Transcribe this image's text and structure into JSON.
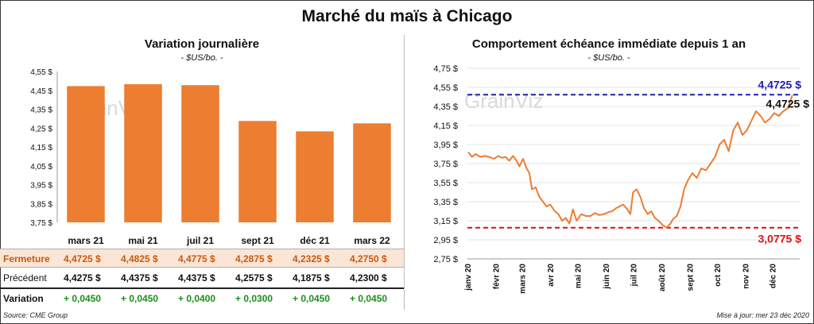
{
  "title": "Marché du maïs à Chicago",
  "left_panel": {
    "title": "Variation journalière",
    "unit": "- $US/bo. -",
    "watermark": "GrainViz"
  },
  "right_panel": {
    "title": "Comportement échéance immédiate depuis 1 an",
    "unit": "- $US/bo. -",
    "watermark": "GrainViz"
  },
  "table": {
    "rows": [
      {
        "label": "Fermeture",
        "values": [
          "4,4725  $",
          "4,4825  $",
          "4,4775  $",
          "4,2875  $",
          "4,2325  $",
          "4,2750  $"
        ]
      },
      {
        "label": "Précédent",
        "values": [
          "4,4275  $",
          "4,4375  $",
          "4,4375  $",
          "4,2575  $",
          "4,1875  $",
          "4,2300  $"
        ]
      },
      {
        "label": "Variation",
        "values": [
          "+ 0,0450",
          "+ 0,0450",
          "+ 0,0400",
          "+ 0,0300",
          "+ 0,0450",
          "+ 0,0450"
        ]
      }
    ]
  },
  "footer": {
    "source": "Source: CME Group",
    "updated": "Mise à jour: mer 23 déc 2020"
  },
  "colors": {
    "bar": "#ed7d31",
    "line": "#ed7d31",
    "high_line": "#1f1fb4",
    "low_line": "#e01010",
    "variation_positive": "#1a8f1a"
  },
  "chart_data": [
    {
      "type": "bar",
      "title": "Variation journalière",
      "categories": [
        "mars 21",
        "mai 21",
        "juil 21",
        "sept 21",
        "déc 21",
        "mars 22"
      ],
      "values": [
        4.4725,
        4.4825,
        4.4775,
        4.2875,
        4.2325,
        4.275
      ],
      "ylim": [
        3.75,
        4.55
      ],
      "yticks": [
        "4,55 $",
        "4,45 $",
        "4,35 $",
        "4,25 $",
        "4,15 $",
        "4,05 $",
        "3,95 $",
        "3,85 $",
        "3,75 $"
      ],
      "ytick_values": [
        4.55,
        4.45,
        4.35,
        4.25,
        4.15,
        4.05,
        3.95,
        3.85,
        3.75
      ],
      "grid": false
    },
    {
      "type": "line",
      "title": "Comportement échéance immédiate depuis 1 an",
      "ylim": [
        2.75,
        4.75
      ],
      "yticks": [
        "4,75 $",
        "4,55 $",
        "4,35 $",
        "4,15 $",
        "3,95 $",
        "3,75 $",
        "3,55 $",
        "3,35 $",
        "3,15 $",
        "2,95 $",
        "2,75 $"
      ],
      "ytick_values": [
        4.75,
        4.55,
        4.35,
        4.15,
        3.95,
        3.75,
        3.55,
        3.35,
        3.15,
        2.95,
        2.75
      ],
      "xticks": [
        "janv 20",
        "févr 20",
        "mars 20",
        "avr 20",
        "mai 20",
        "juin 20",
        "juil 20",
        "août 20",
        "sept 20",
        "oct 20",
        "nov 20",
        "déc 20"
      ],
      "grid": true,
      "series": [
        {
          "x": [
            "2020-01-02",
            "2020-01-06",
            "2020-01-10",
            "2020-01-15",
            "2020-01-20",
            "2020-01-25",
            "2020-01-30",
            "2020-02-04",
            "2020-02-08",
            "2020-02-12",
            "2020-02-16",
            "2020-02-20",
            "2020-02-24",
            "2020-02-27",
            "2020-03-02",
            "2020-03-06",
            "2020-03-09",
            "2020-03-12",
            "2020-03-16",
            "2020-03-20",
            "2020-03-24",
            "2020-03-28",
            "2020-04-01",
            "2020-04-06",
            "2020-04-10",
            "2020-04-14",
            "2020-04-18",
            "2020-04-22",
            "2020-04-26",
            "2020-04-30",
            "2020-05-05",
            "2020-05-10",
            "2020-05-15",
            "2020-05-20",
            "2020-05-25",
            "2020-05-30",
            "2020-06-04",
            "2020-06-08",
            "2020-06-12",
            "2020-06-16",
            "2020-06-20",
            "2020-06-24",
            "2020-06-28",
            "2020-07-01",
            "2020-07-05",
            "2020-07-09",
            "2020-07-13",
            "2020-07-17",
            "2020-07-21",
            "2020-07-25",
            "2020-07-29",
            "2020-08-03",
            "2020-08-07",
            "2020-08-11",
            "2020-08-14",
            "2020-08-18",
            "2020-08-22",
            "2020-08-26",
            "2020-08-30",
            "2020-09-04",
            "2020-09-09",
            "2020-09-14",
            "2020-09-19",
            "2020-09-24",
            "2020-09-29",
            "2020-10-04",
            "2020-10-09",
            "2020-10-14",
            "2020-10-19",
            "2020-10-24",
            "2020-10-29",
            "2020-11-03",
            "2020-11-08",
            "2020-11-13",
            "2020-11-18",
            "2020-11-23",
            "2020-11-28",
            "2020-12-03",
            "2020-12-08",
            "2020-12-13",
            "2020-12-18",
            "2020-12-23"
          ],
          "y": [
            3.87,
            3.82,
            3.85,
            3.82,
            3.83,
            3.82,
            3.8,
            3.83,
            3.81,
            3.82,
            3.78,
            3.83,
            3.78,
            3.72,
            3.8,
            3.7,
            3.65,
            3.48,
            3.5,
            3.4,
            3.35,
            3.3,
            3.32,
            3.25,
            3.22,
            3.15,
            3.18,
            3.12,
            3.27,
            3.15,
            3.22,
            3.2,
            3.2,
            3.23,
            3.21,
            3.22,
            3.24,
            3.25,
            3.28,
            3.3,
            3.32,
            3.28,
            3.22,
            3.45,
            3.48,
            3.4,
            3.28,
            3.22,
            3.25,
            3.18,
            3.15,
            3.1,
            3.08,
            3.12,
            3.17,
            3.2,
            3.3,
            3.48,
            3.57,
            3.65,
            3.6,
            3.7,
            3.68,
            3.75,
            3.82,
            3.95,
            4.0,
            3.88,
            4.1,
            4.18,
            4.05,
            4.1,
            4.2,
            4.3,
            4.25,
            4.18,
            4.22,
            4.28,
            4.25,
            4.3,
            4.33,
            4.47
          ]
        }
      ],
      "annotations": [
        {
          "label": "4,4725 $",
          "value": 4.4725,
          "color": "#1f1fb4"
        },
        {
          "label": "4,4725 $",
          "value": 4.4725,
          "color": "#111111"
        },
        {
          "label": "3,0775 $",
          "value": 3.0775,
          "color": "#e01010"
        }
      ]
    }
  ]
}
